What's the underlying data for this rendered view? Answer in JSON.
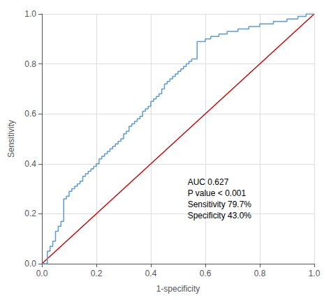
{
  "chart_data": {
    "type": "line",
    "xlabel": "1-specificity",
    "ylabel": "Sensitivity",
    "annotation": "AUC 0.627\nP value < 0.001\nSensitivity 79.7%\nSpecificity 43.0%",
    "xlim": [
      0.0,
      1.0
    ],
    "ylim": [
      0.0,
      1.0
    ],
    "xticks": [
      {
        "value": 0.0,
        "label": "0.0"
      },
      0.2,
      0.4,
      0.6,
      0.8,
      {
        "value": 1.0,
        "label": "1.0"
      }
    ],
    "yticks": [
      {
        "value": 0.0,
        "label": "0.0"
      },
      0.2,
      0.4,
      0.6,
      0.8,
      {
        "value": 1.0,
        "label": "1.0"
      }
    ],
    "series": [
      {
        "color": "#cc0000",
        "x": [
          0,
          1
        ],
        "values": [
          0,
          1
        ]
      },
      {
        "color": "#5b9bd5",
        "x": [
          0.0,
          0.02,
          0.02,
          0.03,
          0.03,
          0.04,
          0.04,
          0.05,
          0.05,
          0.06,
          0.06,
          0.07,
          0.07,
          0.08,
          0.08,
          0.09,
          0.09,
          0.1,
          0.1,
          0.11,
          0.11,
          0.12,
          0.12,
          0.13,
          0.13,
          0.14,
          0.14,
          0.15,
          0.15,
          0.16,
          0.16,
          0.17,
          0.17,
          0.18,
          0.18,
          0.19,
          0.19,
          0.2,
          0.2,
          0.21,
          0.21,
          0.22,
          0.22,
          0.23,
          0.23,
          0.24,
          0.24,
          0.25,
          0.25,
          0.26,
          0.26,
          0.27,
          0.27,
          0.28,
          0.28,
          0.29,
          0.29,
          0.3,
          0.3,
          0.31,
          0.31,
          0.32,
          0.32,
          0.33,
          0.33,
          0.34,
          0.34,
          0.35,
          0.35,
          0.36,
          0.36,
          0.37,
          0.37,
          0.38,
          0.38,
          0.39,
          0.39,
          0.4,
          0.4,
          0.41,
          0.41,
          0.42,
          0.42,
          0.43,
          0.43,
          0.44,
          0.44,
          0.45,
          0.45,
          0.46,
          0.46,
          0.47,
          0.47,
          0.48,
          0.48,
          0.49,
          0.49,
          0.5,
          0.5,
          0.51,
          0.51,
          0.52,
          0.52,
          0.53,
          0.53,
          0.54,
          0.54,
          0.55,
          0.55,
          0.57,
          0.57,
          0.6,
          0.6,
          0.62,
          0.62,
          0.65,
          0.65,
          0.68,
          0.68,
          0.72,
          0.72,
          0.76,
          0.76,
          0.8,
          0.8,
          0.85,
          0.85,
          0.9,
          0.9,
          0.94,
          0.94,
          0.97,
          0.97,
          1.0
        ],
        "values": [
          0.0,
          0.0,
          0.05,
          0.05,
          0.07,
          0.07,
          0.09,
          0.09,
          0.13,
          0.13,
          0.15,
          0.15,
          0.17,
          0.17,
          0.26,
          0.26,
          0.27,
          0.27,
          0.29,
          0.29,
          0.3,
          0.3,
          0.31,
          0.31,
          0.32,
          0.32,
          0.33,
          0.33,
          0.35,
          0.35,
          0.36,
          0.36,
          0.37,
          0.37,
          0.38,
          0.38,
          0.39,
          0.39,
          0.4,
          0.4,
          0.42,
          0.42,
          0.43,
          0.43,
          0.44,
          0.44,
          0.45,
          0.45,
          0.46,
          0.46,
          0.47,
          0.47,
          0.48,
          0.48,
          0.49,
          0.49,
          0.5,
          0.5,
          0.52,
          0.52,
          0.53,
          0.53,
          0.55,
          0.55,
          0.56,
          0.56,
          0.57,
          0.57,
          0.58,
          0.58,
          0.59,
          0.59,
          0.61,
          0.61,
          0.62,
          0.62,
          0.63,
          0.63,
          0.65,
          0.65,
          0.66,
          0.66,
          0.67,
          0.67,
          0.68,
          0.68,
          0.7,
          0.7,
          0.72,
          0.72,
          0.73,
          0.73,
          0.74,
          0.74,
          0.75,
          0.75,
          0.76,
          0.76,
          0.77,
          0.77,
          0.78,
          0.78,
          0.79,
          0.79,
          0.8,
          0.8,
          0.81,
          0.81,
          0.82,
          0.82,
          0.89,
          0.89,
          0.9,
          0.9,
          0.91,
          0.91,
          0.92,
          0.92,
          0.93,
          0.93,
          0.94,
          0.94,
          0.95,
          0.95,
          0.96,
          0.96,
          0.97,
          0.97,
          0.98,
          0.98,
          0.99,
          0.99,
          1.0,
          1.0
        ]
      }
    ]
  }
}
